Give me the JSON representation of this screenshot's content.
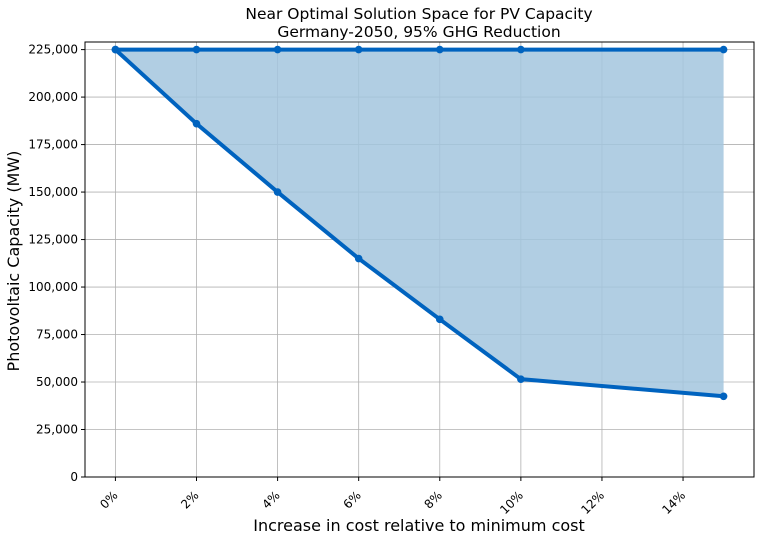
{
  "chart_data": {
    "type": "area",
    "title": "Near Optimal Solution Space for PV Capacity",
    "subtitle": "Germany-2050, 95% GHG Reduction",
    "xlabel": "Increase in cost relative to minimum cost",
    "ylabel": "Photovoltaic Capacity (MW)",
    "x_unit": "%",
    "xlim": [
      -0.75,
      15.75
    ],
    "ylim": [
      0,
      229000
    ],
    "x_ticks": [
      0,
      2,
      4,
      6,
      8,
      10,
      12,
      14
    ],
    "x_tick_labels": [
      "0%",
      "2%",
      "4%",
      "6%",
      "8%",
      "10%",
      "12%",
      "14%"
    ],
    "y_ticks": [
      0,
      25000,
      50000,
      75000,
      100000,
      125000,
      150000,
      175000,
      200000,
      225000
    ],
    "y_tick_labels": [
      "0",
      "25,000",
      "50,000",
      "75,000",
      "100,000",
      "125,000",
      "150,000",
      "175,000",
      "200,000",
      "225,000"
    ],
    "grid": true,
    "x": [
      0,
      2,
      4,
      6,
      8,
      10,
      15
    ],
    "series": [
      {
        "role": "upper",
        "values": [
          225000,
          225000,
          225000,
          225000,
          225000,
          225000,
          225000
        ]
      },
      {
        "role": "lower",
        "values": [
          225000,
          186000,
          150000,
          115000,
          83000,
          51500,
          42500
        ]
      }
    ],
    "fill_between": true,
    "colors": {
      "line": "#0063bf",
      "fill": "#a3c6de",
      "grid": "#b0b0b0",
      "axes": "#000000"
    }
  }
}
